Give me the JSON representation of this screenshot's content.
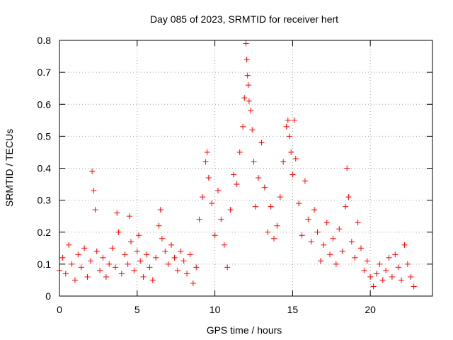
{
  "chart_data": {
    "type": "scatter",
    "title": "Day 085 of 2023, SRMTID for receiver hert",
    "xlabel": "GPS time / hours",
    "ylabel": "SRMTID / TECUs",
    "xlim": [
      0,
      24
    ],
    "ylim": [
      0,
      0.8
    ],
    "x_ticks": [
      0,
      5,
      10,
      15,
      20
    ],
    "x_tick_labels": [
      "0",
      "5",
      "10",
      "15",
      "20"
    ],
    "y_ticks": [
      0,
      0.1,
      0.2,
      0.3,
      0.4,
      0.5,
      0.6,
      0.7,
      0.8
    ],
    "y_tick_labels": [
      "0",
      "0.1",
      "0.2",
      "0.3",
      "0.4",
      "0.5",
      "0.6",
      "0.7",
      "0.8"
    ],
    "grid": true,
    "marker": "+",
    "color": "#ff0000",
    "series": [
      {
        "name": "SRMTID",
        "points": [
          [
            0.0,
            0.08
          ],
          [
            0.2,
            0.12
          ],
          [
            0.4,
            0.07
          ],
          [
            0.6,
            0.16
          ],
          [
            0.8,
            0.1
          ],
          [
            1.0,
            0.05
          ],
          [
            1.2,
            0.13
          ],
          [
            1.4,
            0.09
          ],
          [
            1.6,
            0.15
          ],
          [
            1.8,
            0.06
          ],
          [
            2.0,
            0.11
          ],
          [
            2.1,
            0.39
          ],
          [
            2.2,
            0.33
          ],
          [
            2.3,
            0.27
          ],
          [
            2.4,
            0.14
          ],
          [
            2.6,
            0.08
          ],
          [
            2.8,
            0.12
          ],
          [
            3.0,
            0.06
          ],
          [
            3.2,
            0.1
          ],
          [
            3.4,
            0.15
          ],
          [
            3.6,
            0.09
          ],
          [
            3.7,
            0.26
          ],
          [
            3.8,
            0.2
          ],
          [
            4.0,
            0.07
          ],
          [
            4.2,
            0.13
          ],
          [
            4.4,
            0.1
          ],
          [
            4.5,
            0.25
          ],
          [
            4.6,
            0.17
          ],
          [
            4.8,
            0.08
          ],
          [
            5.0,
            0.14
          ],
          [
            5.1,
            0.19
          ],
          [
            5.2,
            0.11
          ],
          [
            5.4,
            0.06
          ],
          [
            5.6,
            0.13
          ],
          [
            5.8,
            0.09
          ],
          [
            6.0,
            0.05
          ],
          [
            6.2,
            0.12
          ],
          [
            6.4,
            0.22
          ],
          [
            6.5,
            0.27
          ],
          [
            6.6,
            0.18
          ],
          [
            6.8,
            0.14
          ],
          [
            7.0,
            0.1
          ],
          [
            7.2,
            0.16
          ],
          [
            7.4,
            0.12
          ],
          [
            7.6,
            0.08
          ],
          [
            7.8,
            0.14
          ],
          [
            8.0,
            0.11
          ],
          [
            8.2,
            0.07
          ],
          [
            8.4,
            0.13
          ],
          [
            8.6,
            0.04
          ],
          [
            8.8,
            0.09
          ],
          [
            9.0,
            0.24
          ],
          [
            9.2,
            0.31
          ],
          [
            9.4,
            0.42
          ],
          [
            9.5,
            0.45
          ],
          [
            9.6,
            0.37
          ],
          [
            9.8,
            0.29
          ],
          [
            10.0,
            0.19
          ],
          [
            10.2,
            0.33
          ],
          [
            10.4,
            0.24
          ],
          [
            10.6,
            0.16
          ],
          [
            10.8,
            0.09
          ],
          [
            11.0,
            0.27
          ],
          [
            11.2,
            0.38
          ],
          [
            11.4,
            0.35
          ],
          [
            11.6,
            0.45
          ],
          [
            11.8,
            0.53
          ],
          [
            11.9,
            0.62
          ],
          [
            12.0,
            0.79
          ],
          [
            12.05,
            0.74
          ],
          [
            12.1,
            0.69
          ],
          [
            12.15,
            0.66
          ],
          [
            12.2,
            0.61
          ],
          [
            12.3,
            0.58
          ],
          [
            12.4,
            0.52
          ],
          [
            12.5,
            0.42
          ],
          [
            12.6,
            0.28
          ],
          [
            12.8,
            0.37
          ],
          [
            13.0,
            0.48
          ],
          [
            13.2,
            0.34
          ],
          [
            13.4,
            0.2
          ],
          [
            13.6,
            0.28
          ],
          [
            13.8,
            0.18
          ],
          [
            14.0,
            0.22
          ],
          [
            14.2,
            0.31
          ],
          [
            14.4,
            0.42
          ],
          [
            14.6,
            0.53
          ],
          [
            14.7,
            0.55
          ],
          [
            14.8,
            0.5
          ],
          [
            14.9,
            0.45
          ],
          [
            15.0,
            0.38
          ],
          [
            15.1,
            0.55
          ],
          [
            15.2,
            0.43
          ],
          [
            15.4,
            0.29
          ],
          [
            15.6,
            0.19
          ],
          [
            15.8,
            0.36
          ],
          [
            16.0,
            0.24
          ],
          [
            16.2,
            0.17
          ],
          [
            16.4,
            0.27
          ],
          [
            16.6,
            0.2
          ],
          [
            16.8,
            0.11
          ],
          [
            17.0,
            0.16
          ],
          [
            17.2,
            0.23
          ],
          [
            17.4,
            0.13
          ],
          [
            17.6,
            0.18
          ],
          [
            17.8,
            0.1
          ],
          [
            18.0,
            0.21
          ],
          [
            18.2,
            0.14
          ],
          [
            18.4,
            0.28
          ],
          [
            18.5,
            0.4
          ],
          [
            18.6,
            0.31
          ],
          [
            18.8,
            0.17
          ],
          [
            19.0,
            0.12
          ],
          [
            19.2,
            0.23
          ],
          [
            19.4,
            0.15
          ],
          [
            19.6,
            0.08
          ],
          [
            19.8,
            0.11
          ],
          [
            20.0,
            0.06
          ],
          [
            20.2,
            0.03
          ],
          [
            20.4,
            0.07
          ],
          [
            20.6,
            0.1
          ],
          [
            20.8,
            0.05
          ],
          [
            21.0,
            0.08
          ],
          [
            21.2,
            0.12
          ],
          [
            21.4,
            0.06
          ],
          [
            21.6,
            0.13
          ],
          [
            21.8,
            0.09
          ],
          [
            22.0,
            0.05
          ],
          [
            22.2,
            0.16
          ],
          [
            22.4,
            0.1
          ],
          [
            22.6,
            0.06
          ],
          [
            22.8,
            0.03
          ]
        ]
      }
    ]
  }
}
